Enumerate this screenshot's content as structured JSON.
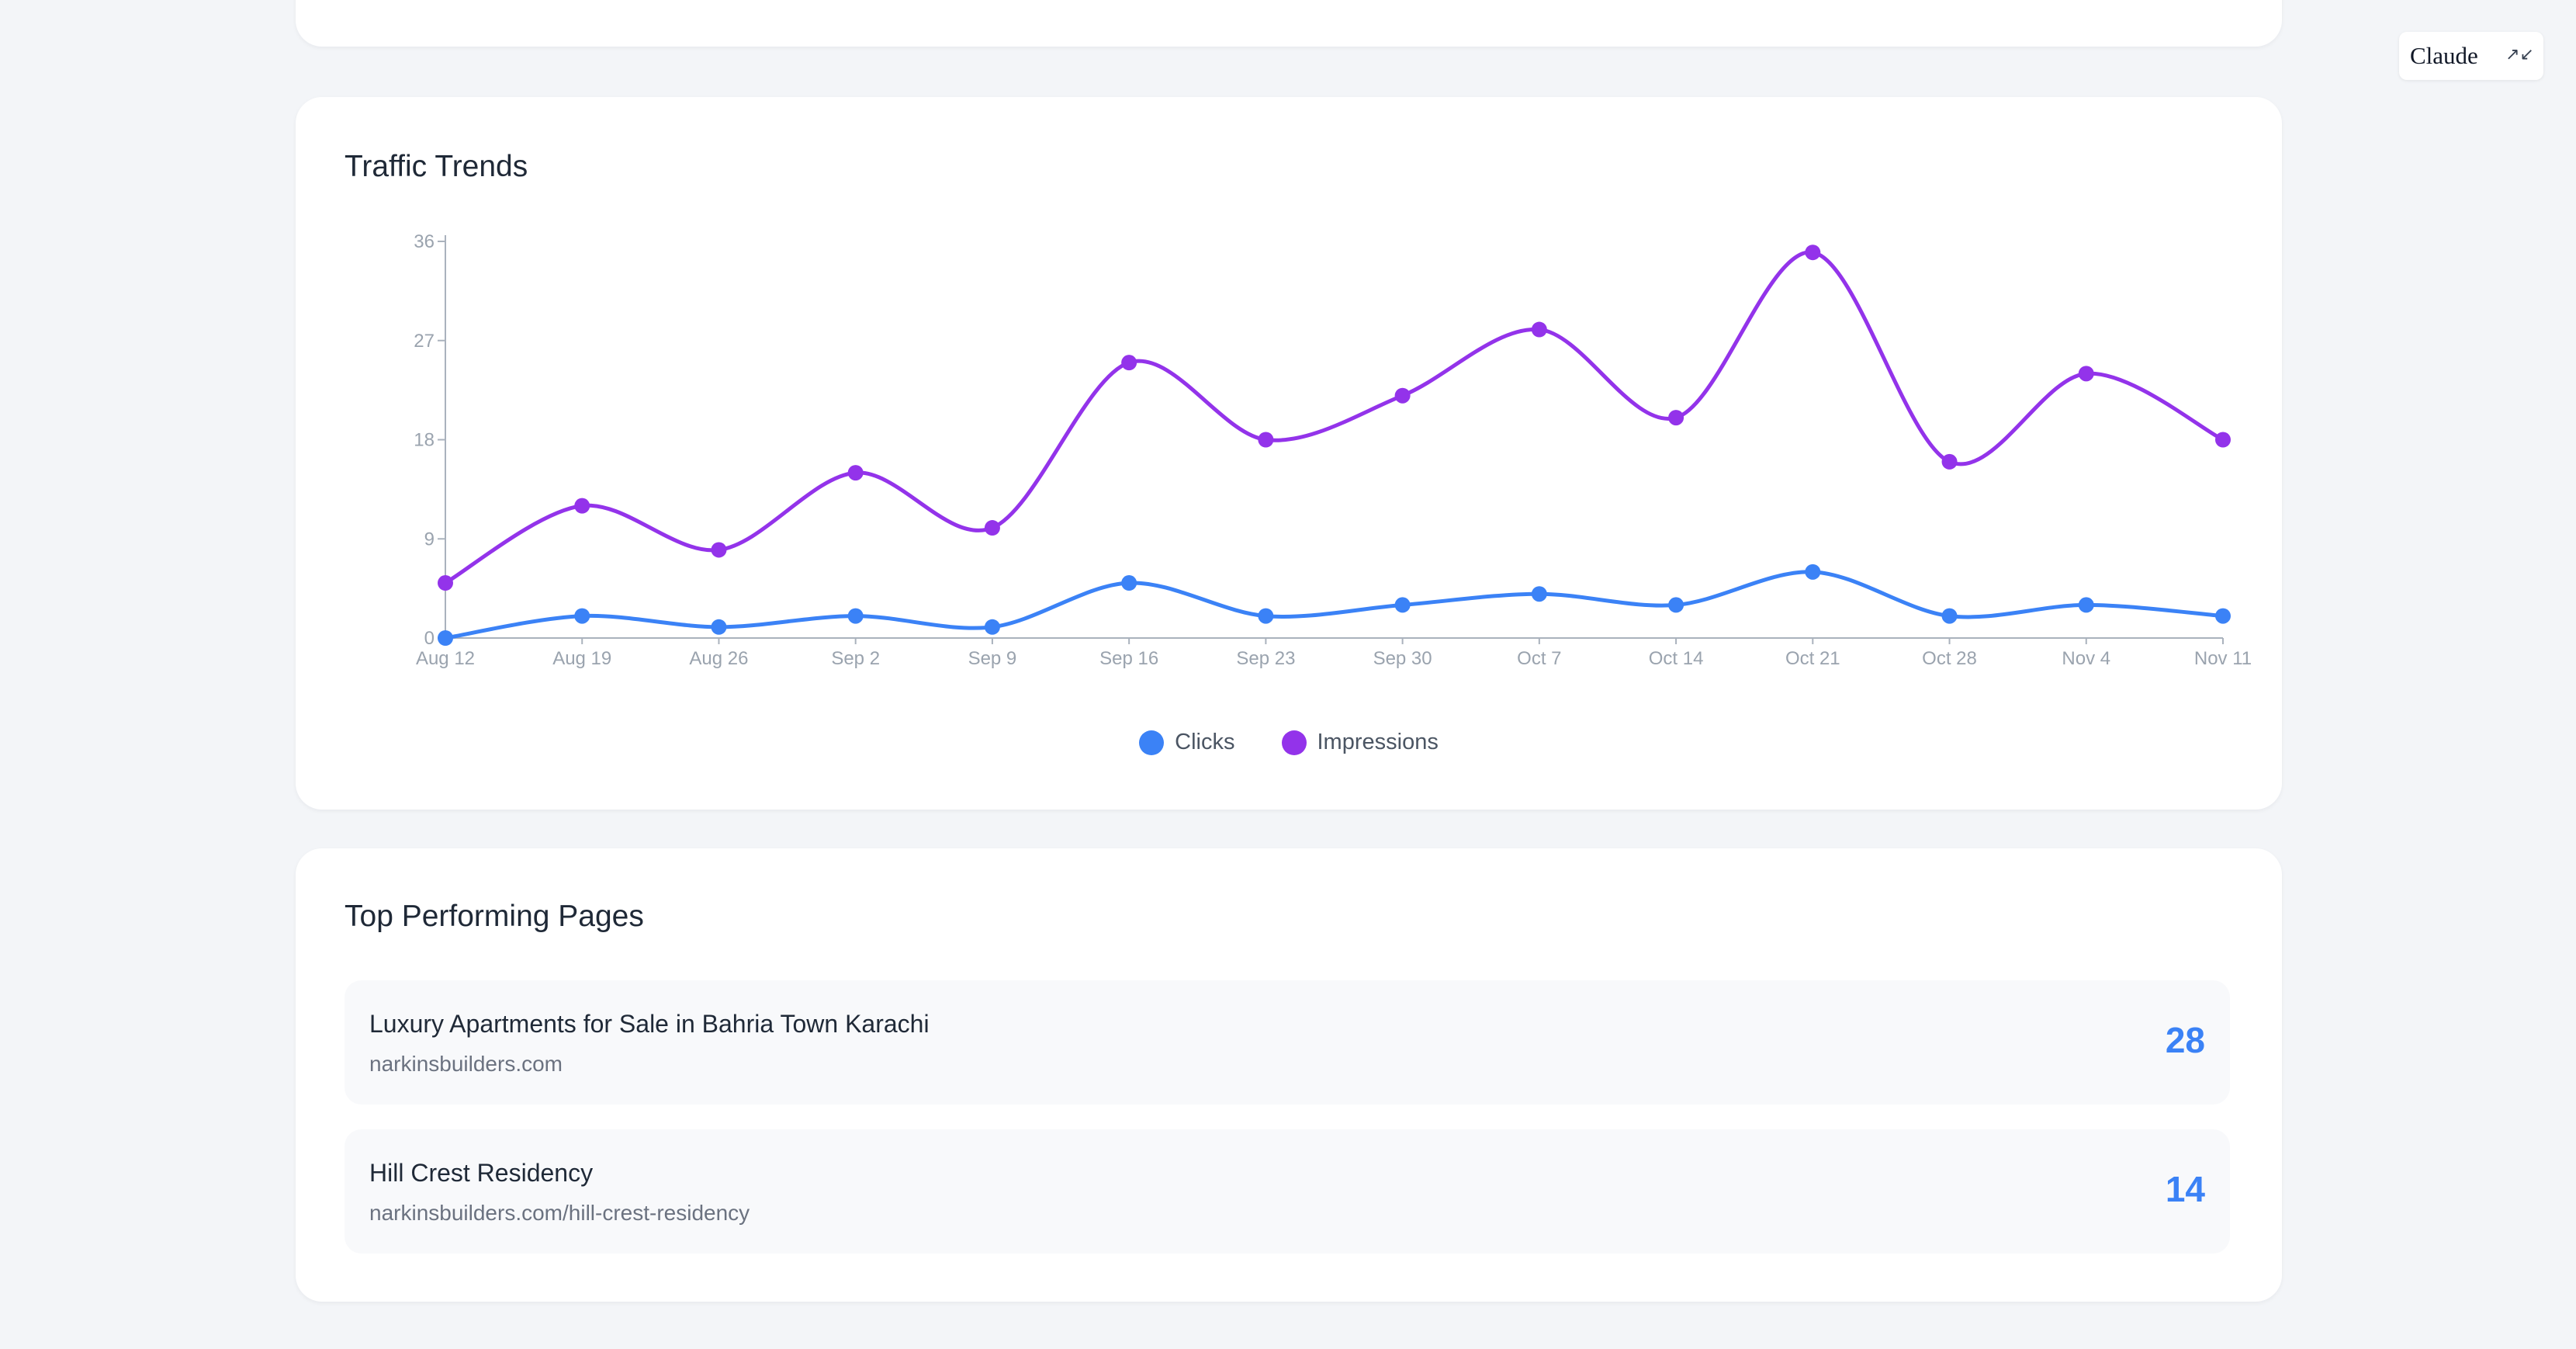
{
  "chart_card": {
    "title": "Traffic Trends"
  },
  "pages_card": {
    "title": "Top Performing Pages",
    "rows": [
      {
        "title": "Luxury Apartments for Sale in Bahria Town Karachi",
        "url": "narkinsbuilders.com",
        "count": "28"
      },
      {
        "title": "Hill Crest Residency",
        "url": "narkinsbuilders.com/hill-crest-residency",
        "count": "14"
      }
    ]
  },
  "badge": {
    "label": "Claude",
    "icon": "collapse-arrows-icon"
  },
  "colors": {
    "clicks": "#3b82f6",
    "impressions": "#9333ea",
    "accent": "#3b82f6"
  },
  "chart_data": {
    "type": "line",
    "title": "Traffic Trends",
    "categories": [
      "Aug 12",
      "Aug 19",
      "Aug 26",
      "Sep 2",
      "Sep 9",
      "Sep 16",
      "Sep 23",
      "Sep 30",
      "Oct 7",
      "Oct 14",
      "Oct 21",
      "Oct 28",
      "Nov 4",
      "Nov 11"
    ],
    "series": [
      {
        "name": "Clicks",
        "color": "#3b82f6",
        "values": [
          0,
          2,
          1,
          2,
          1,
          5,
          2,
          3,
          4,
          3,
          6,
          2,
          3,
          2
        ]
      },
      {
        "name": "Impressions",
        "color": "#9333ea",
        "values": [
          5,
          12,
          8,
          15,
          10,
          25,
          18,
          22,
          28,
          20,
          35,
          16,
          24,
          18
        ]
      }
    ],
    "yticks": [
      "0",
      "9",
      "18",
      "27",
      "36"
    ],
    "ylim": [
      0,
      36
    ],
    "legend_position": "bottom-center",
    "grid": false
  }
}
